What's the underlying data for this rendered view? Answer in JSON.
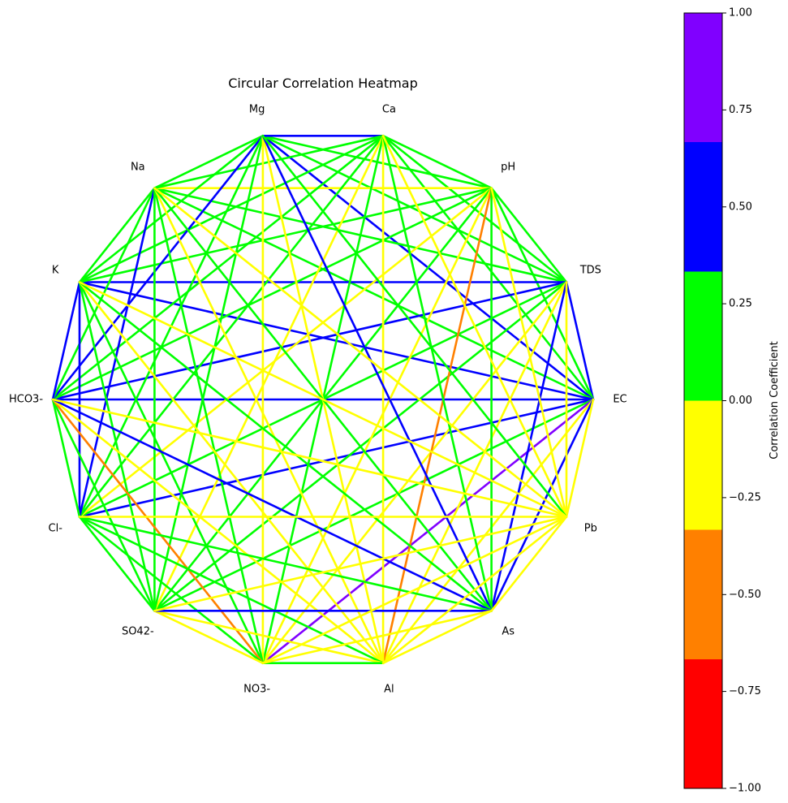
{
  "chart_data": {
    "type": "heatmap",
    "layout": "circular-network",
    "title": "Circular Correlation Heatmap",
    "variables": [
      "EC",
      "TDS",
      "pH",
      "Ca",
      "Mg",
      "Na",
      "K",
      "HCO3-",
      "Cl-",
      "SO42-",
      "NO3-",
      "Al",
      "As",
      "Pb"
    ],
    "colorbar": {
      "label": "Correlation Coefficient",
      "range": [
        -1.0,
        1.0
      ],
      "ticks": [
        "1.00",
        "0.75",
        "0.50",
        "0.25",
        "0.00",
        "−0.25",
        "−0.50",
        "−0.75",
        "−1.00"
      ],
      "tick_values": [
        1.0,
        0.75,
        0.5,
        0.25,
        0.0,
        -0.25,
        -0.5,
        -0.75,
        -1.0
      ],
      "bins": [
        {
          "from": -1.0,
          "to": -0.667,
          "color": "#ff0000"
        },
        {
          "from": -0.667,
          "to": -0.333,
          "color": "#ff8000"
        },
        {
          "from": -0.333,
          "to": 0.0,
          "color": "#ffff00"
        },
        {
          "from": 0.0,
          "to": 0.333,
          "color": "#00ff00"
        },
        {
          "from": 0.333,
          "to": 0.667,
          "color": "#0000ff"
        },
        {
          "from": 0.667,
          "to": 1.0,
          "color": "#8000ff"
        }
      ]
    },
    "edges": [
      [
        "EC",
        "TDS",
        0.5
      ],
      [
        "EC",
        "pH",
        0.2
      ],
      [
        "EC",
        "Ca",
        0.2
      ],
      [
        "EC",
        "Mg",
        0.5
      ],
      [
        "EC",
        "Na",
        0.2
      ],
      [
        "EC",
        "K",
        0.5
      ],
      [
        "EC",
        "HCO3-",
        0.5
      ],
      [
        "EC",
        "Cl-",
        0.5
      ],
      [
        "EC",
        "SO42-",
        0.2
      ],
      [
        "EC",
        "NO3-",
        0.8
      ],
      [
        "EC",
        "Al",
        -0.2
      ],
      [
        "EC",
        "As",
        0.5
      ],
      [
        "EC",
        "Pb",
        -0.2
      ],
      [
        "TDS",
        "pH",
        0.2
      ],
      [
        "TDS",
        "Ca",
        0.2
      ],
      [
        "TDS",
        "Mg",
        0.2
      ],
      [
        "TDS",
        "Na",
        0.2
      ],
      [
        "TDS",
        "K",
        0.5
      ],
      [
        "TDS",
        "HCO3-",
        0.5
      ],
      [
        "TDS",
        "Cl-",
        0.2
      ],
      [
        "TDS",
        "SO42-",
        0.2
      ],
      [
        "TDS",
        "NO3-",
        -0.2
      ],
      [
        "TDS",
        "Al",
        -0.2
      ],
      [
        "TDS",
        "As",
        0.5
      ],
      [
        "TDS",
        "Pb",
        -0.2
      ],
      [
        "pH",
        "Ca",
        0.2
      ],
      [
        "pH",
        "Mg",
        0.2
      ],
      [
        "pH",
        "Na",
        -0.2
      ],
      [
        "pH",
        "K",
        0.2
      ],
      [
        "pH",
        "HCO3-",
        0.2
      ],
      [
        "pH",
        "Cl-",
        -0.2
      ],
      [
        "pH",
        "SO42-",
        0.2
      ],
      [
        "pH",
        "NO3-",
        -0.2
      ],
      [
        "pH",
        "Al",
        -0.5
      ],
      [
        "pH",
        "As",
        0.2
      ],
      [
        "pH",
        "Pb",
        -0.2
      ],
      [
        "Ca",
        "Mg",
        0.5
      ],
      [
        "Ca",
        "Na",
        0.2
      ],
      [
        "Ca",
        "K",
        0.2
      ],
      [
        "Ca",
        "HCO3-",
        0.2
      ],
      [
        "Ca",
        "Cl-",
        0.2
      ],
      [
        "Ca",
        "SO42-",
        -0.2
      ],
      [
        "Ca",
        "NO3-",
        0.2
      ],
      [
        "Ca",
        "Al",
        -0.2
      ],
      [
        "Ca",
        "As",
        0.2
      ],
      [
        "Ca",
        "Pb",
        -0.2
      ],
      [
        "Mg",
        "Na",
        0.2
      ],
      [
        "Mg",
        "K",
        0.2
      ],
      [
        "Mg",
        "HCO3-",
        0.5
      ],
      [
        "Mg",
        "Cl-",
        0.2
      ],
      [
        "Mg",
        "SO42-",
        0.2
      ],
      [
        "Mg",
        "NO3-",
        -0.2
      ],
      [
        "Mg",
        "Al",
        -0.2
      ],
      [
        "Mg",
        "As",
        0.5
      ],
      [
        "Mg",
        "Pb",
        0.2
      ],
      [
        "Na",
        "K",
        0.2
      ],
      [
        "Na",
        "HCO3-",
        0.2
      ],
      [
        "Na",
        "Cl-",
        0.5
      ],
      [
        "Na",
        "SO42-",
        0.2
      ],
      [
        "Na",
        "NO3-",
        0.2
      ],
      [
        "Na",
        "Al",
        -0.2
      ],
      [
        "Na",
        "As",
        0.2
      ],
      [
        "Na",
        "Pb",
        -0.2
      ],
      [
        "K",
        "HCO3-",
        0.5
      ],
      [
        "K",
        "Cl-",
        0.5
      ],
      [
        "K",
        "SO42-",
        0.2
      ],
      [
        "K",
        "NO3-",
        0.2
      ],
      [
        "K",
        "Al",
        -0.2
      ],
      [
        "K",
        "As",
        0.2
      ],
      [
        "K",
        "Pb",
        -0.2
      ],
      [
        "HCO3-",
        "Cl-",
        0.2
      ],
      [
        "HCO3-",
        "SO42-",
        0.2
      ],
      [
        "HCO3-",
        "NO3-",
        -0.5
      ],
      [
        "HCO3-",
        "Al",
        -0.2
      ],
      [
        "HCO3-",
        "As",
        0.5
      ],
      [
        "HCO3-",
        "Pb",
        -0.2
      ],
      [
        "Cl-",
        "SO42-",
        0.2
      ],
      [
        "Cl-",
        "NO3-",
        0.2
      ],
      [
        "Cl-",
        "Al",
        0.2
      ],
      [
        "Cl-",
        "As",
        0.2
      ],
      [
        "Cl-",
        "Pb",
        -0.2
      ],
      [
        "SO42-",
        "NO3-",
        -0.2
      ],
      [
        "SO42-",
        "Al",
        -0.2
      ],
      [
        "SO42-",
        "As",
        0.5
      ],
      [
        "SO42-",
        "Pb",
        -0.2
      ],
      [
        "NO3-",
        "Al",
        0.2
      ],
      [
        "NO3-",
        "As",
        -0.2
      ],
      [
        "NO3-",
        "Pb",
        -0.2
      ],
      [
        "Al",
        "As",
        -0.2
      ],
      [
        "Al",
        "Pb",
        -0.2
      ],
      [
        "As",
        "Pb",
        -0.2
      ]
    ]
  }
}
